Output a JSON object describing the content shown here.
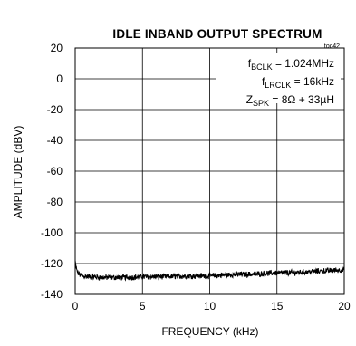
{
  "chart_data": {
    "type": "line",
    "title": "IDLE  INBAND OUTPUT SPECTRUM",
    "figure_tag": "toc42",
    "xlabel": "FREQUENCY (kHz)",
    "ylabel": "AMPLITUDE (dBV)",
    "xlim": [
      0,
      20
    ],
    "ylim": [
      -140,
      20
    ],
    "x_ticks": [
      0,
      5,
      10,
      15,
      20
    ],
    "x_tick_labels": [
      "0",
      "5",
      "10",
      "15",
      "20"
    ],
    "y_ticks": [
      20,
      0,
      -20,
      -40,
      -60,
      -80,
      -100,
      -120,
      -140
    ],
    "y_tick_labels": [
      "20",
      "0",
      "-20",
      "-40",
      "-60",
      "-80",
      "-100",
      "-120",
      "-140"
    ],
    "grid": true,
    "line_color": "#000000",
    "annotations": [
      {
        "base": "f",
        "sub": "BCLK",
        "rest": " = 1.024MHz"
      },
      {
        "base": "f",
        "sub": "LRCLK",
        "rest": " = 16kHz"
      },
      {
        "base": "Z",
        "sub": "SPK",
        "rest": " = 8Ω + 33µH"
      }
    ],
    "series": [
      {
        "x": [
          0.0,
          0.1,
          0.2,
          0.3,
          0.5,
          1,
          2,
          3,
          4,
          5,
          6,
          7,
          8,
          9,
          10,
          11,
          12,
          13,
          14,
          15,
          16,
          17,
          18,
          19,
          20
        ],
        "values": [
          -118,
          -124,
          -126,
          -127,
          -128,
          -128.5,
          -129,
          -129,
          -129,
          -128.5,
          -128.5,
          -128.5,
          -128,
          -128,
          -128,
          -127.5,
          -127,
          -127,
          -126.5,
          -126,
          -126,
          -125.5,
          -125,
          -124.5,
          -124
        ]
      }
    ]
  }
}
